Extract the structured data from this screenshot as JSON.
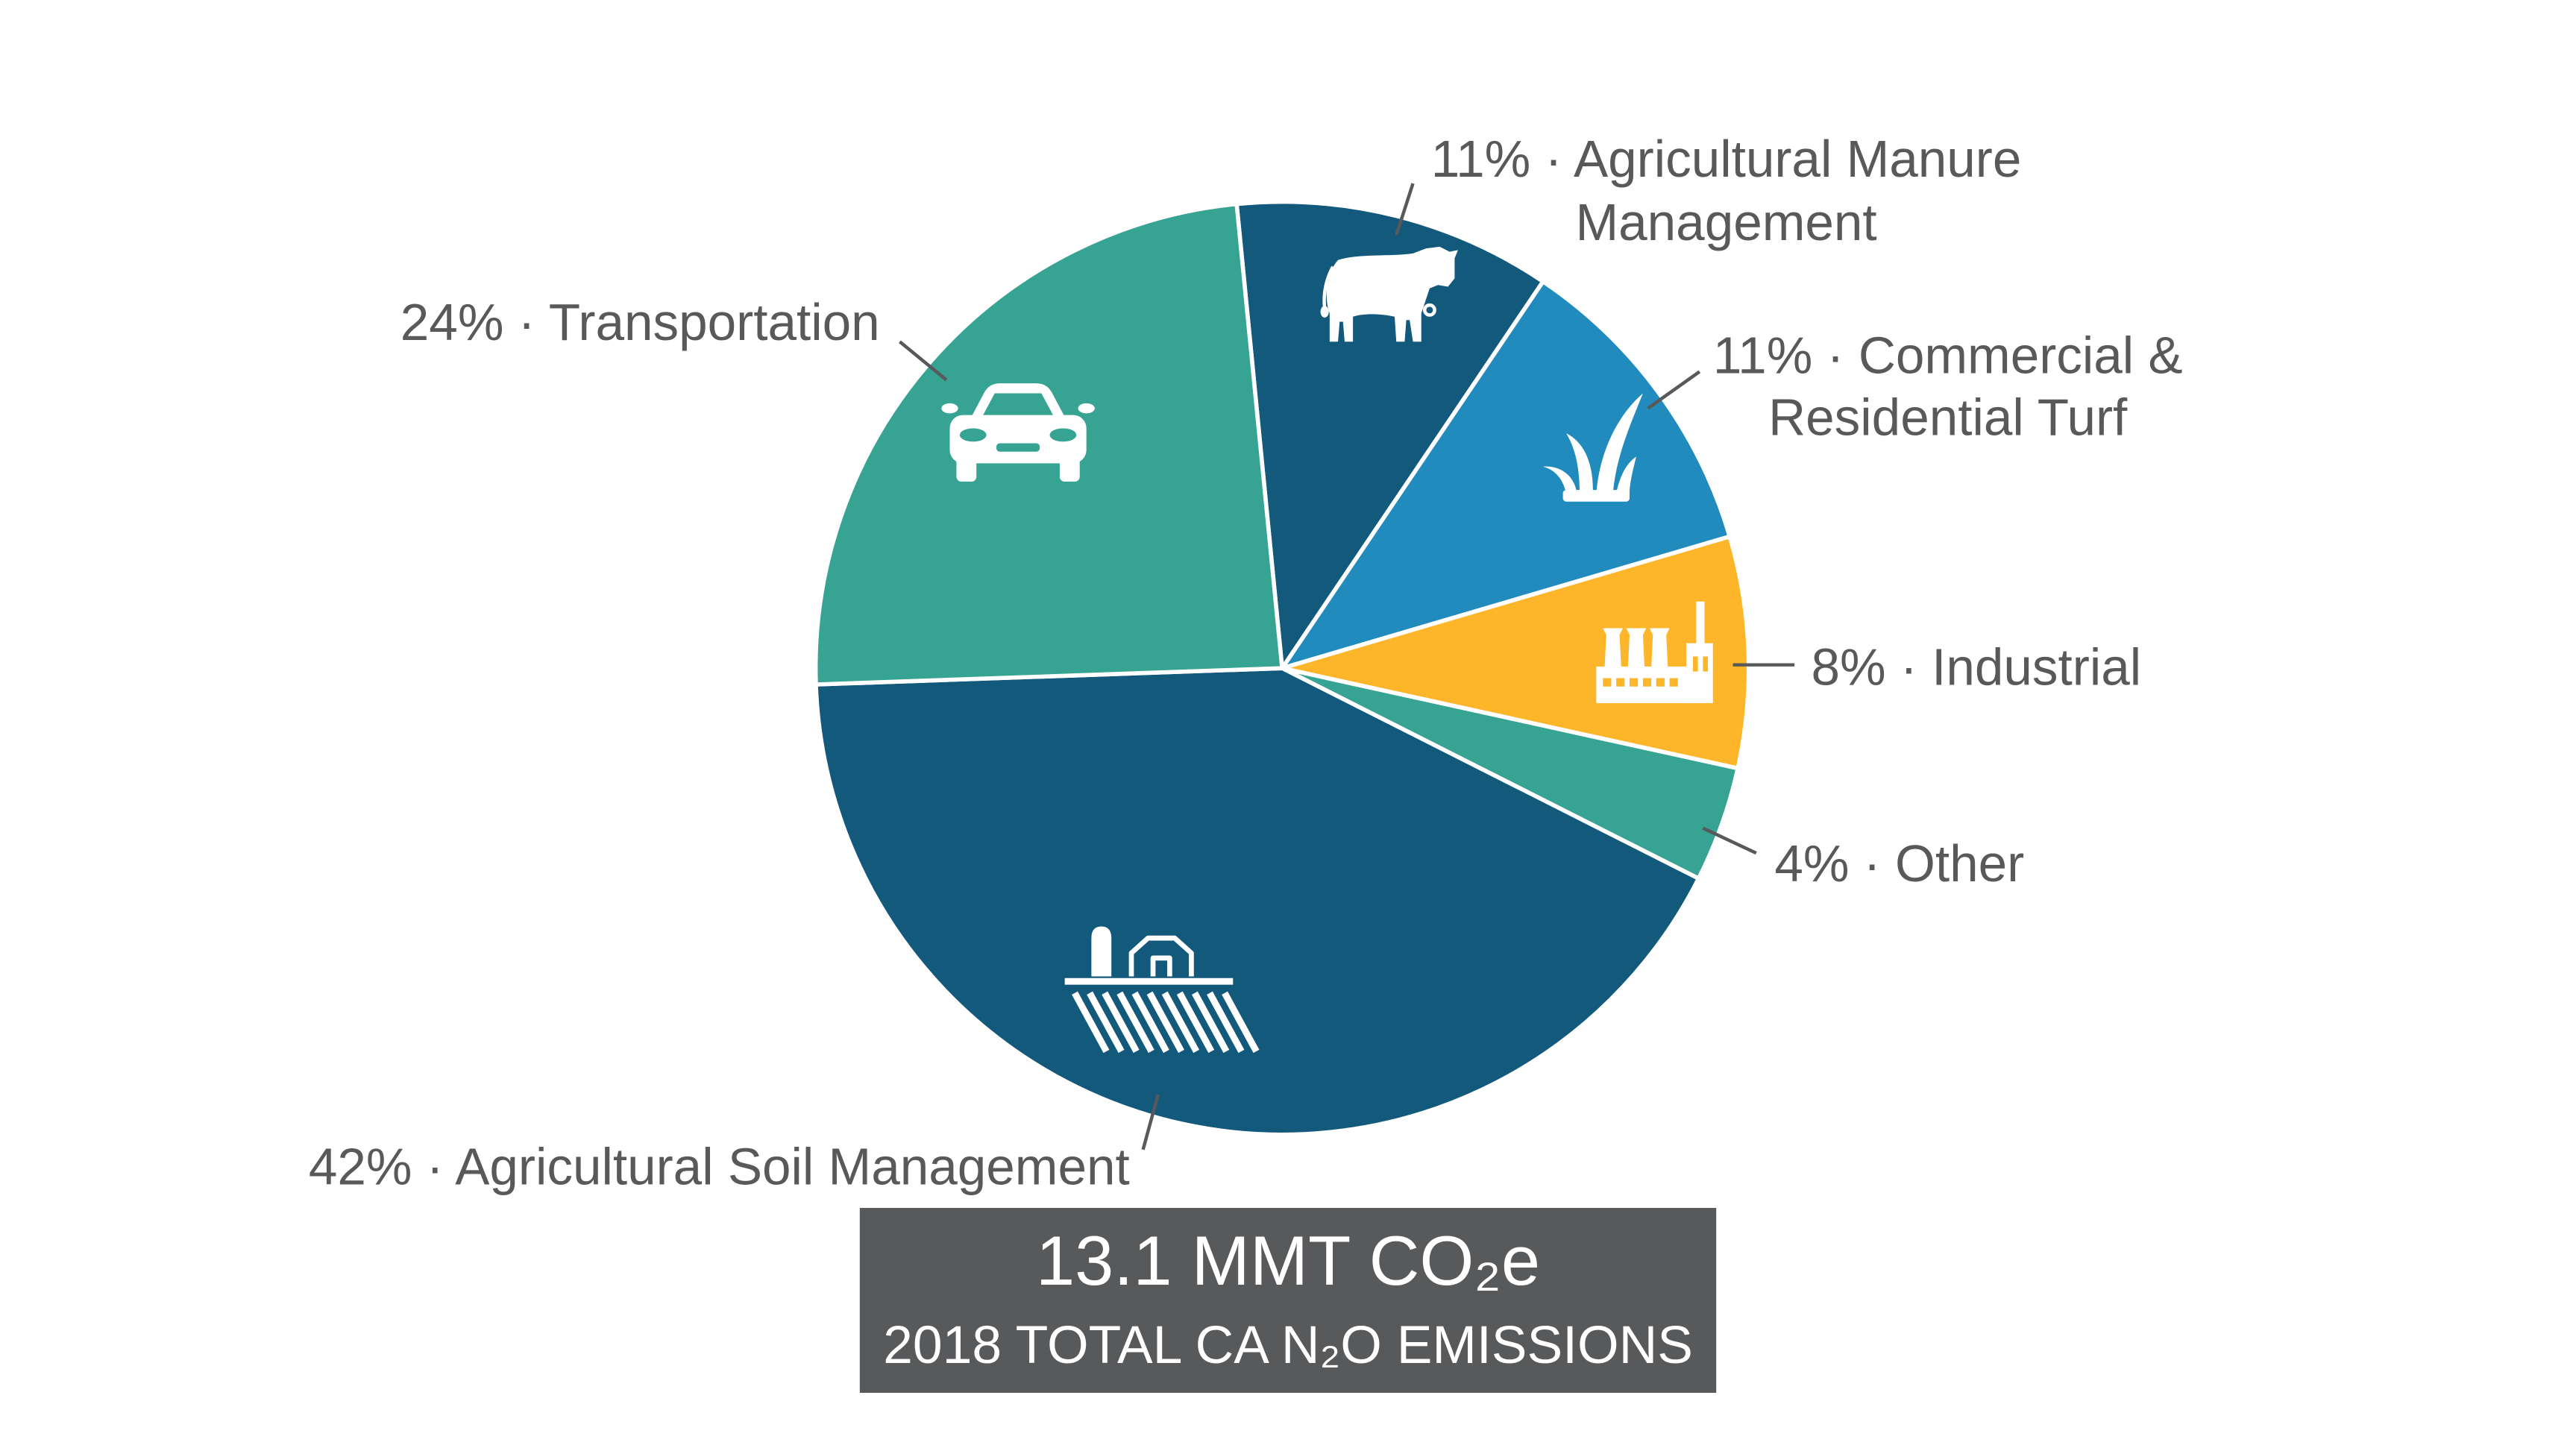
{
  "chart_data": {
    "type": "pie",
    "title": "13.1 MMT CO₂e",
    "subtitle": "2018 TOTAL CA N₂O EMISSIONS",
    "slices": [
      {
        "value": 11,
        "label_lines": [
          "11% · Agricultural Manure",
          "Management"
        ],
        "color": "#13597C",
        "icon": "cow-icon"
      },
      {
        "value": 11,
        "label_lines": [
          "11% · Commercial &",
          "Residential Turf"
        ],
        "color": "#228BBE",
        "icon": "grass-icon"
      },
      {
        "value": 8,
        "label_lines": [
          "8% · Industrial"
        ],
        "color": "#FDB62A",
        "icon": "factory-icon"
      },
      {
        "value": 4,
        "label_lines": [
          "4% · Other"
        ],
        "color": "#37A493"
      },
      {
        "value": 42,
        "label_lines": [
          "42% · Agricultural Soil Management"
        ],
        "color": "#13597C",
        "icon": "farm-icon"
      },
      {
        "value": 24,
        "label_lines": [
          "24% · Transportation"
        ],
        "color": "#37A493",
        "icon": "car-icon"
      }
    ]
  },
  "colors": {
    "label_text": "#58595B",
    "leader_line": "#58595B",
    "total_box_background": "#58595B",
    "total_box_text": "#FFFFFF",
    "slice_border": "#FFFFFF",
    "icon": "#FFFFFF"
  }
}
